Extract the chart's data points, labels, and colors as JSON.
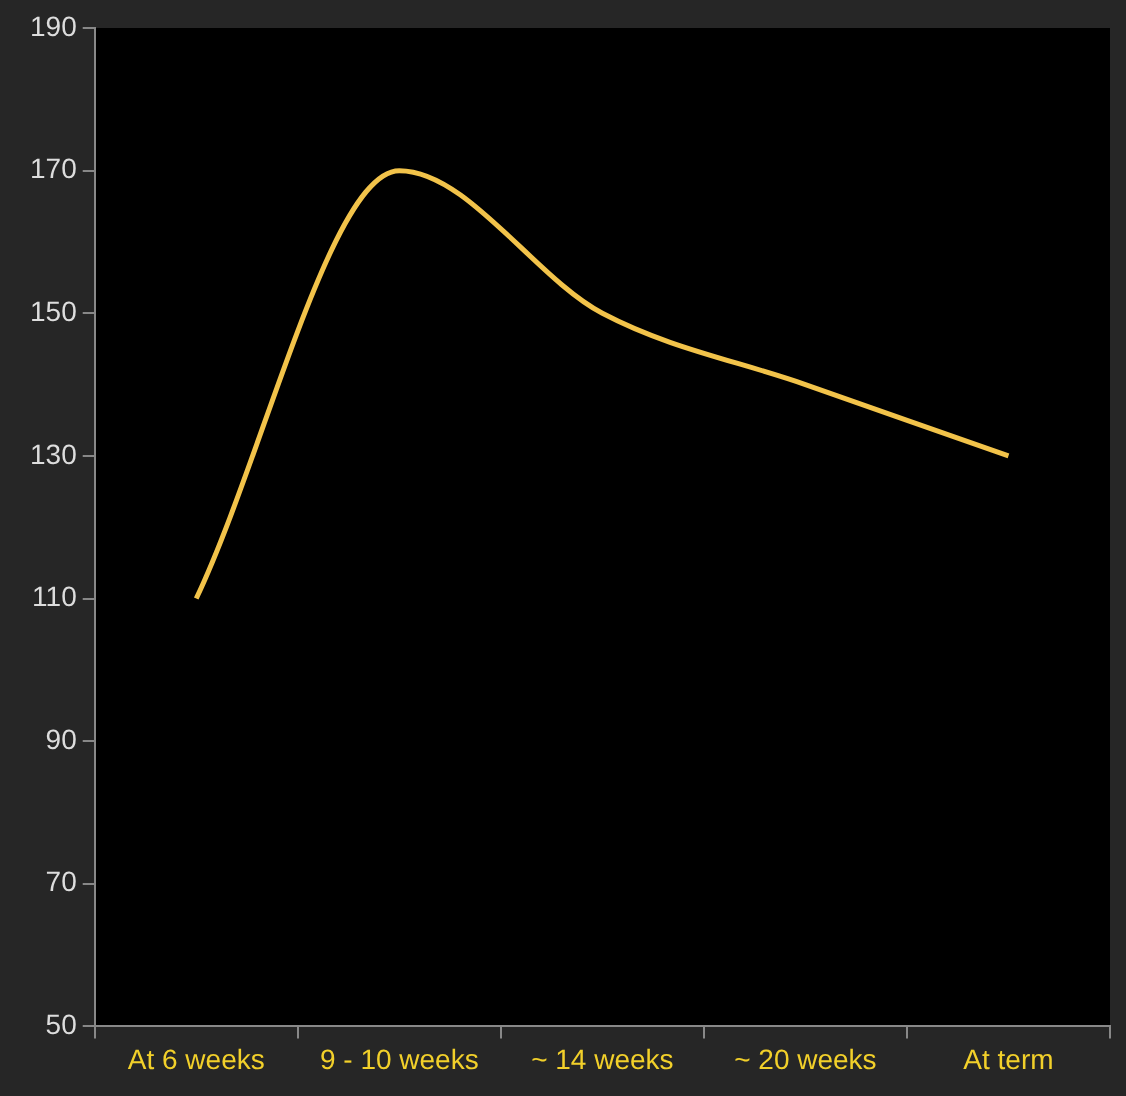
{
  "chart_data": {
    "type": "line",
    "categories": [
      "At 6 weeks",
      "9 - 10 weeks",
      "~ 14 weeks",
      "~ 20 weeks",
      "At term"
    ],
    "series": [
      {
        "color": "#f2c34a",
        "values": [
          110,
          170,
          150,
          140,
          130
        ]
      }
    ],
    "ylim": [
      50,
      190
    ],
    "yticks": [
      50,
      70,
      90,
      110,
      130,
      150,
      170,
      190
    ],
    "grid": false,
    "legend": false,
    "marker": "none",
    "line_style": "solid"
  }
}
